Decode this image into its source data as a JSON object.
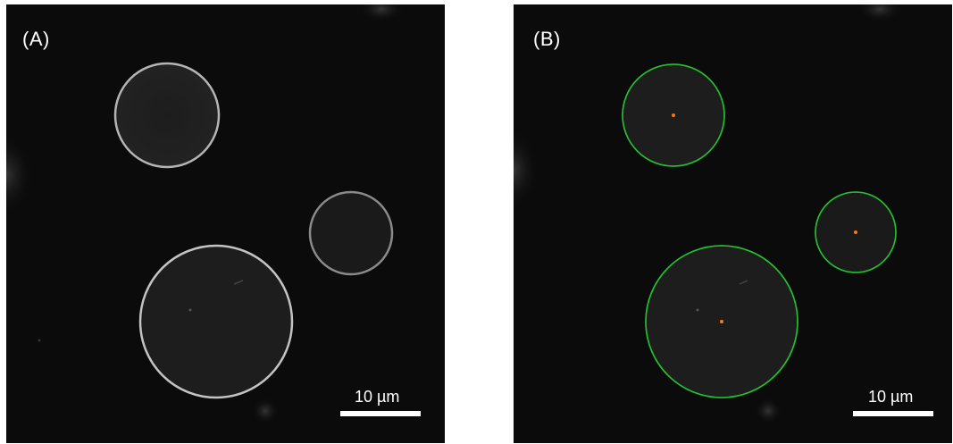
{
  "figure": {
    "panels": [
      {
        "label": "(A)",
        "scale_bar_text": "10 µm",
        "vesicle_color": "#bfbfbf",
        "show_fit": false
      },
      {
        "label": "(B)",
        "scale_bar_text": "10 µm",
        "vesicle_color": "#bfbfbf",
        "fit_circle_color": "#22c22a",
        "center_marker_color": "#ff7a00",
        "show_fit": true
      }
    ]
  }
}
